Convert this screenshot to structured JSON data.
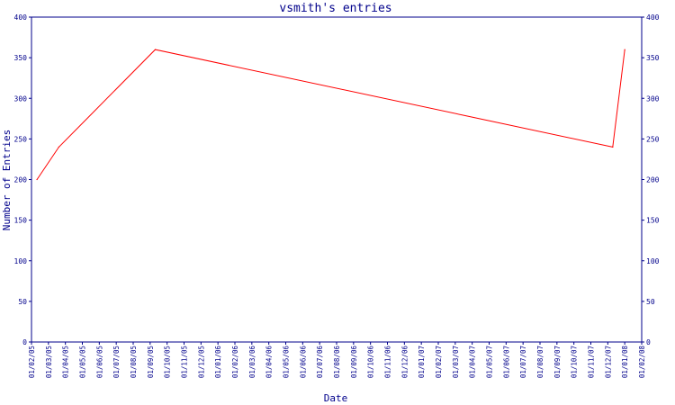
{
  "chart_data": {
    "type": "line",
    "title": "vsmith's entries",
    "xlabel": "Date",
    "ylabel": "Number of Entries",
    "ylim": [
      0,
      400
    ],
    "yticks": [
      0,
      50,
      100,
      150,
      200,
      250,
      300,
      350,
      400
    ],
    "grid": false,
    "right_axis_mirror": true,
    "x_tick_labels": [
      "01/02/05",
      "01/03/05",
      "01/04/05",
      "01/05/05",
      "01/06/05",
      "01/07/05",
      "01/08/05",
      "01/09/05",
      "01/10/05",
      "01/11/05",
      "01/12/05",
      "01/01/06",
      "01/02/06",
      "01/03/06",
      "01/04/06",
      "01/05/06",
      "01/06/06",
      "01/07/06",
      "01/08/06",
      "01/09/06",
      "01/10/06",
      "01/11/06",
      "01/12/06",
      "01/01/07",
      "01/02/07",
      "01/03/07",
      "01/04/07",
      "01/05/07",
      "01/06/07",
      "01/07/07",
      "01/08/07",
      "01/09/07",
      "01/10/07",
      "01/11/07",
      "01/12/07",
      "01/01/08",
      "01/02/08"
    ],
    "series": [
      {
        "color": "#ff0000",
        "points": [
          {
            "x": "2005-02-10",
            "y": 200
          },
          {
            "x": "2005-03-20",
            "y": 240
          },
          {
            "x": "2005-09-10",
            "y": 360
          },
          {
            "x": "2007-12-10",
            "y": 240
          },
          {
            "x": "2008-01-01",
            "y": 360
          }
        ]
      }
    ],
    "colors": {
      "axis": "#00008b",
      "line": "#ff0000",
      "text": "#00008b"
    }
  }
}
